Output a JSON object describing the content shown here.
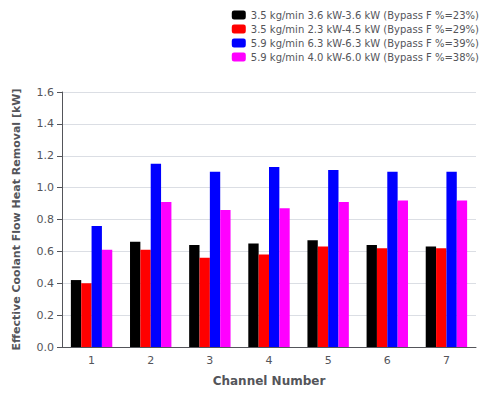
{
  "chart_data": {
    "type": "bar",
    "xlabel": "Channel Number",
    "ylabel": "Effective Coolant Flow Heat Removal [kW]",
    "categories": [
      1,
      2,
      3,
      4,
      5,
      6,
      7
    ],
    "series": [
      {
        "name": "3.5 kg/min 3.6 kW-3.6 kW (Bypass F %=23%)",
        "color": "#000000",
        "values": [
          0.42,
          0.66,
          0.64,
          0.65,
          0.67,
          0.64,
          0.63
        ]
      },
      {
        "name": "3.5 kg/min 2.3 kW-4.5 kW (Bypass F %=29%)",
        "color": "#ff0000",
        "values": [
          0.4,
          0.61,
          0.56,
          0.58,
          0.63,
          0.62,
          0.62
        ]
      },
      {
        "name": "5.9 kg/min 6.3 kW-6.3 kW (Bypass F %=39%)",
        "color": "#0000ff",
        "values": [
          0.76,
          1.15,
          1.1,
          1.13,
          1.11,
          1.1,
          1.1
        ]
      },
      {
        "name": "5.9 kg/min 4.0 kW-6.0 kW (Bypass F %=38%)",
        "color": "#ff00ff",
        "values": [
          0.61,
          0.91,
          0.86,
          0.87,
          0.91,
          0.92,
          0.92
        ]
      }
    ],
    "ylim": [
      0.0,
      1.6
    ],
    "yticks": [
      {
        "value": 0,
        "label": "0.0"
      },
      0.2,
      0.4,
      0.6,
      0.8,
      {
        "value": 1,
        "label": "1.0"
      },
      1.2,
      1.4,
      1.6
    ],
    "grid": true,
    "legend": "upper right"
  }
}
